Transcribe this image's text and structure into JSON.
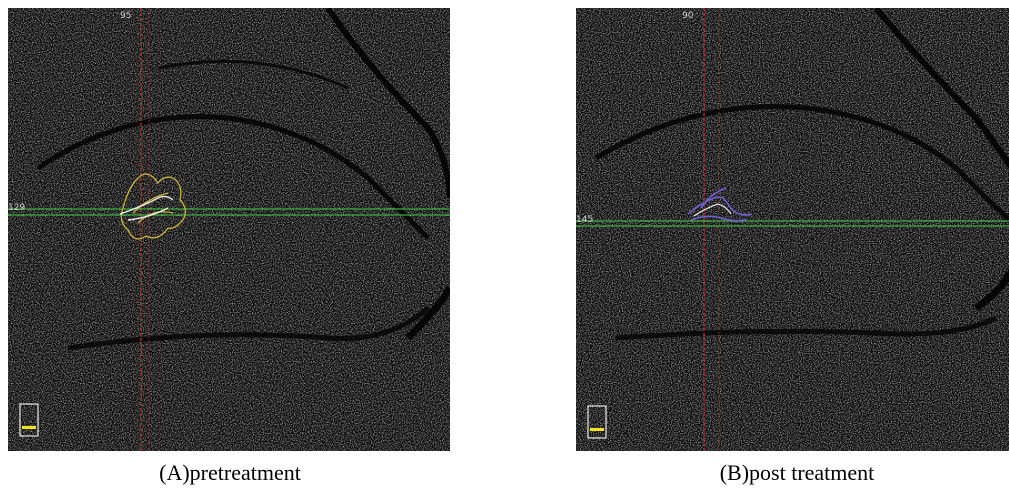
{
  "panels": [
    {
      "id": "a",
      "caption": "(A)pretreatment",
      "horizontal_line_label": "129",
      "vertical_line_label": "95",
      "lesion_color": "#c9b23a",
      "scanline_color": "#3fbf3f",
      "crosshair_color": "#b02a2a"
    },
    {
      "id": "b",
      "caption": "(B)post treatment",
      "horizontal_line_label": "145",
      "vertical_line_label": "90",
      "lesion_color": "#6f63d9",
      "scanline_color": "#3fbf3f",
      "crosshair_color": "#b02a2a"
    }
  ]
}
